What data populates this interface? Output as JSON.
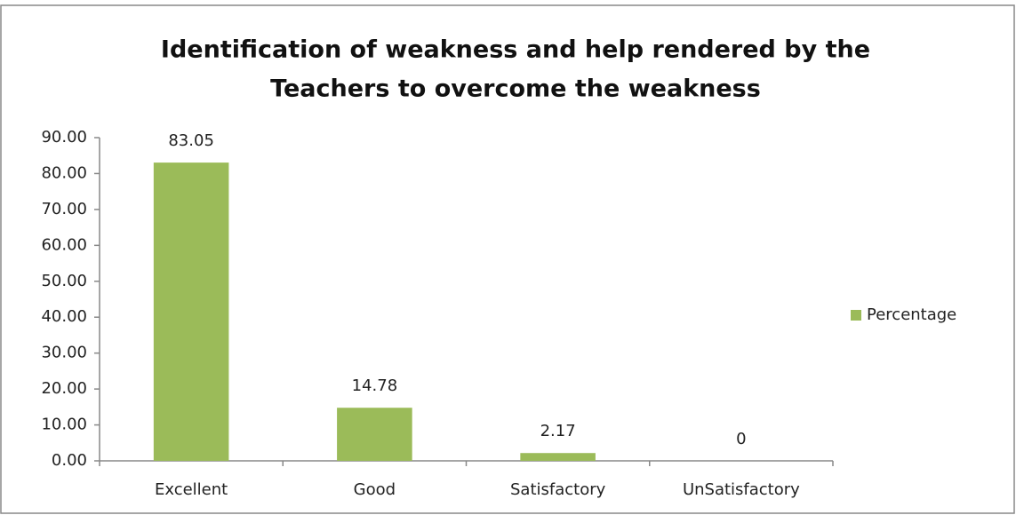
{
  "chart_data": {
    "type": "bar",
    "title": [
      "Identification of weakness  and help rendered by the",
      "Teachers to overcome the weakness"
    ],
    "categories": [
      "Excellent",
      "Good",
      "Satisfactory",
      "UnSatisfactory"
    ],
    "series": [
      {
        "name": "Percentage",
        "color": "#9bbb59",
        "values": [
          83.05,
          14.78,
          2.17,
          0
        ]
      }
    ],
    "ylim": [
      0,
      90
    ],
    "yticks": [
      {
        "value": 0,
        "label": "0.00"
      },
      {
        "value": 10,
        "label": "10.00"
      },
      {
        "value": 20,
        "label": "20.00"
      },
      {
        "value": 30,
        "label": "30.00"
      },
      {
        "value": 40,
        "label": "40.00"
      },
      {
        "value": 50,
        "label": "50.00"
      },
      {
        "value": 60,
        "label": "60.00"
      },
      {
        "value": 70,
        "label": "70.00"
      },
      {
        "value": 80,
        "label": "80.00"
      },
      {
        "value": 90,
        "label": "90.00"
      }
    ],
    "grid": false,
    "legend": "right"
  }
}
